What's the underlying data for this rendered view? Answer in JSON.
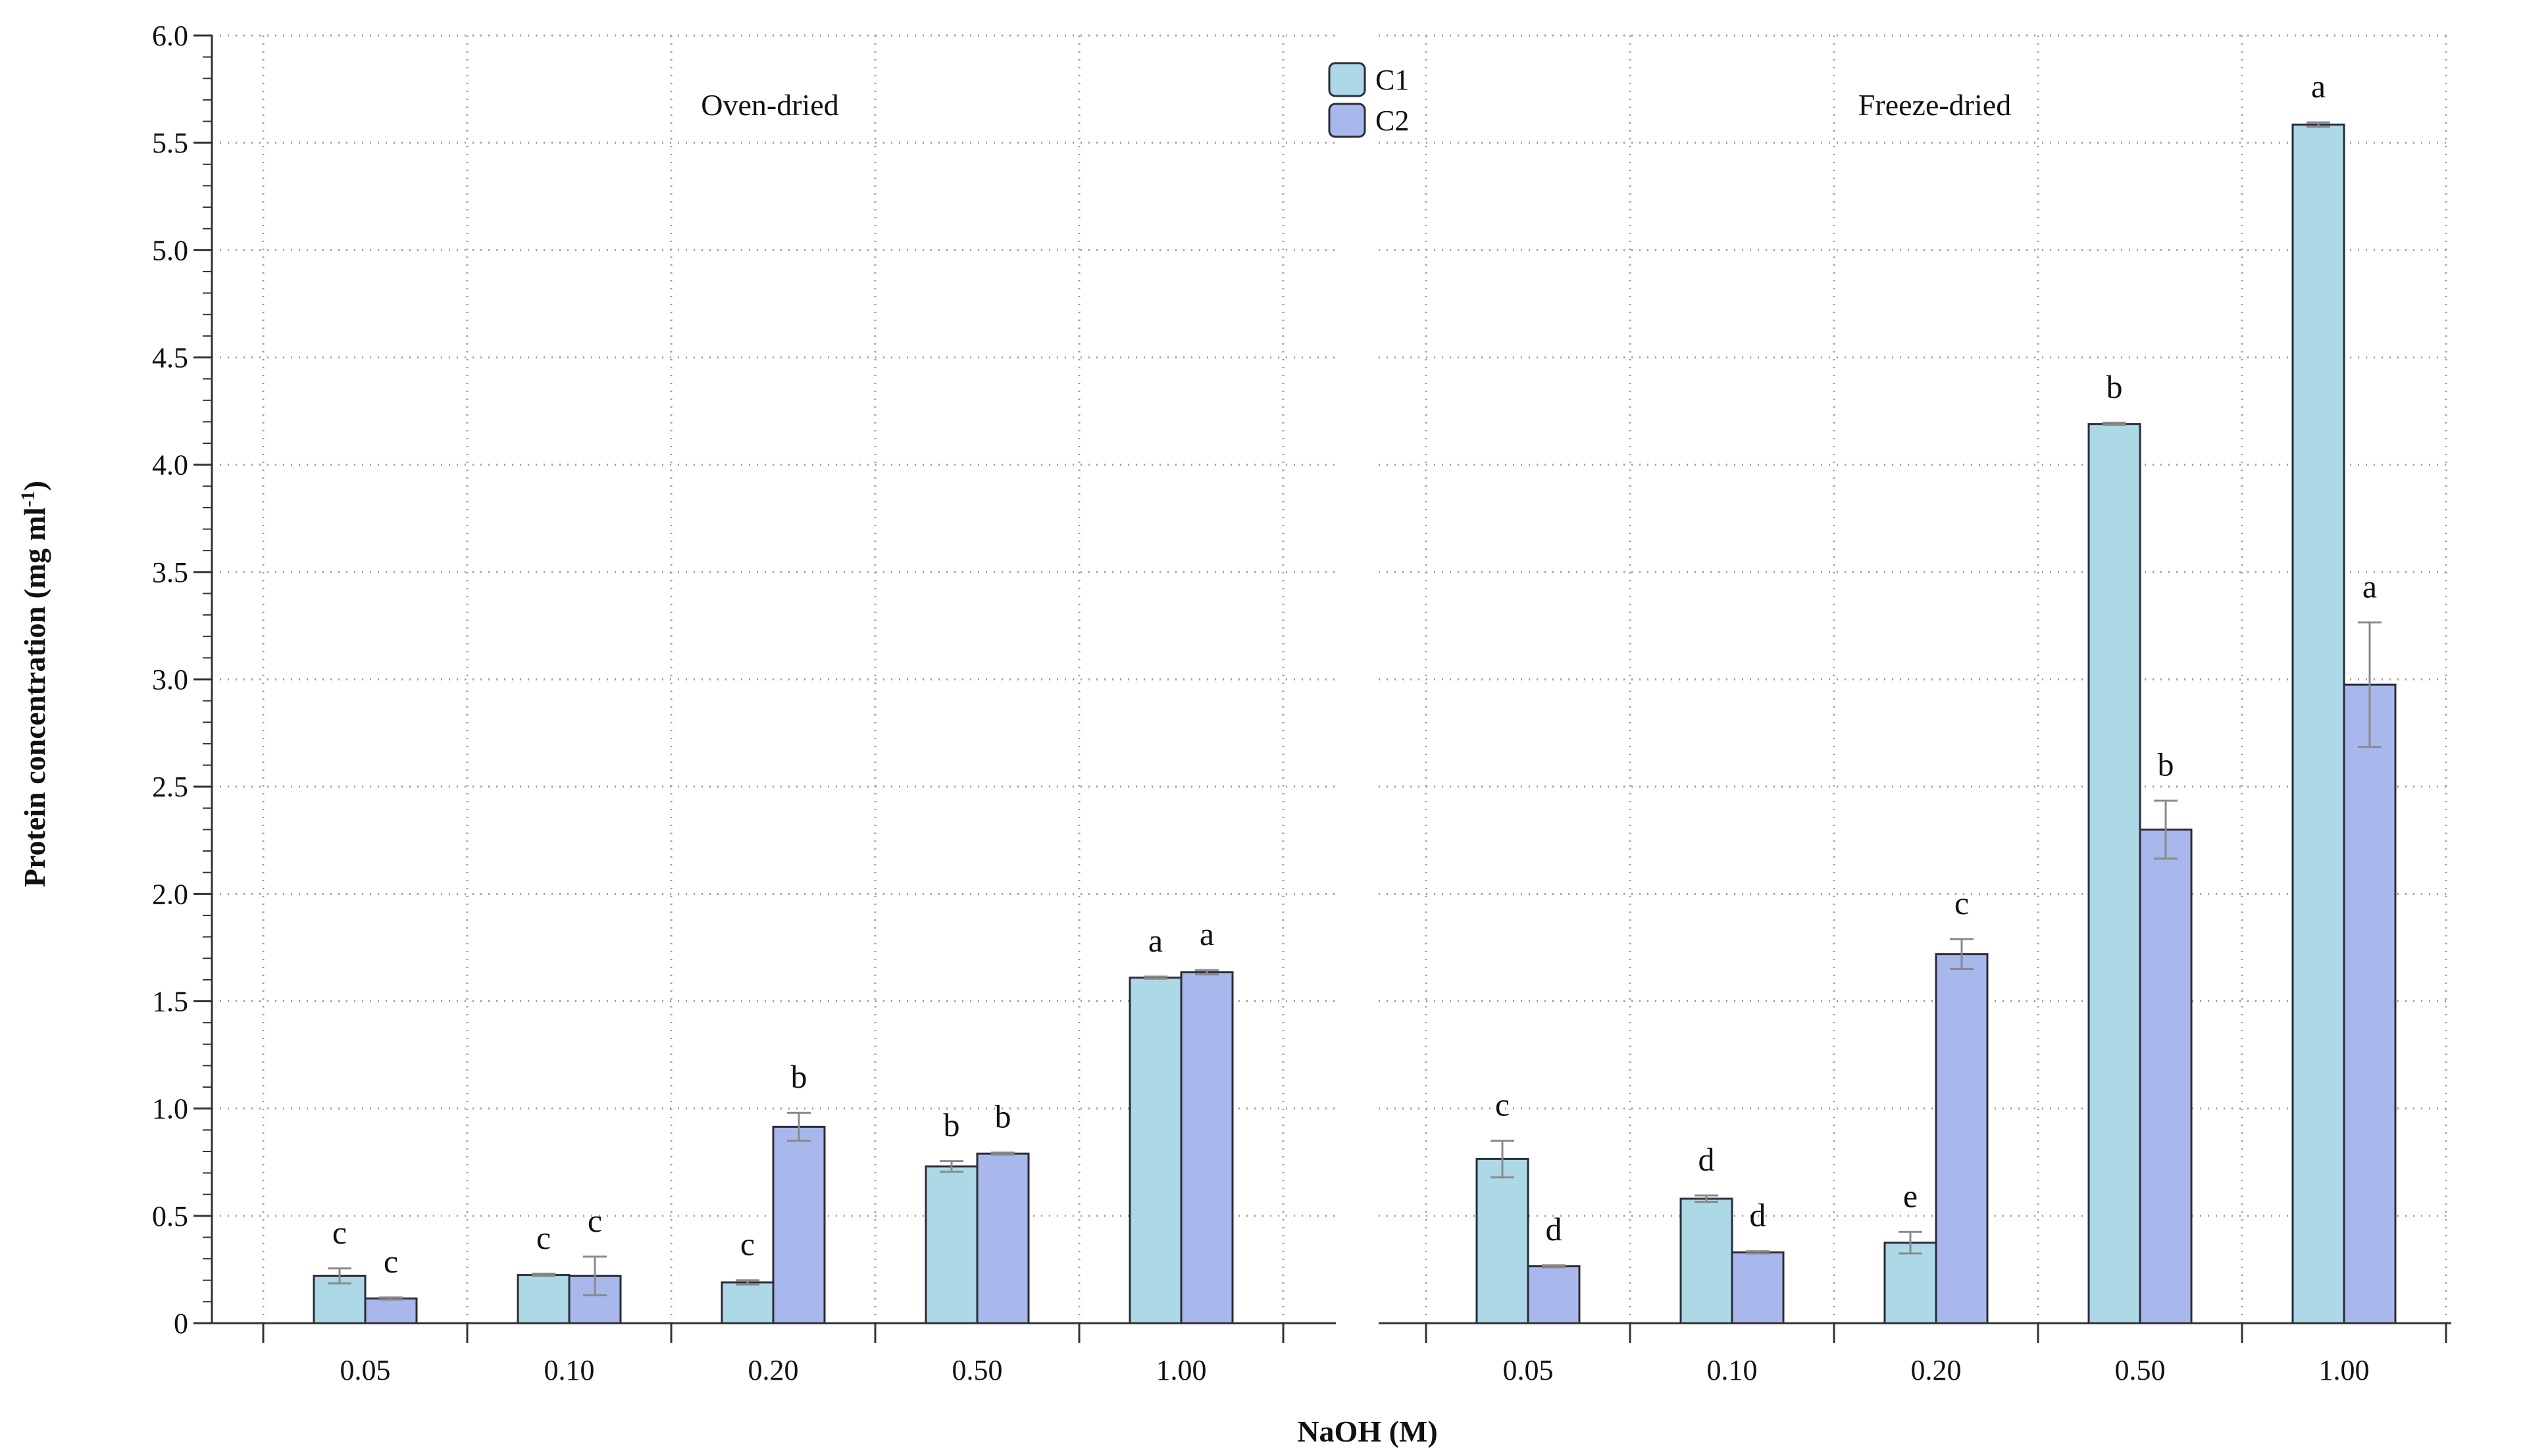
{
  "chart_data": {
    "type": "bar",
    "ylabel": "Protein concentration (mg ml",
    "ylabel_sup": "-1",
    "ylabel_close": ")",
    "xlabel": "NaOH (M)",
    "ylim": [
      0,
      6.0
    ],
    "yticks": [
      "0",
      "0.5",
      "1.0",
      "1.5",
      "2.0",
      "2.5",
      "3.0",
      "3.5",
      "4.0",
      "4.5",
      "5.0",
      "5.5",
      "6.0"
    ],
    "grid": true,
    "legend": {
      "placement": "top-center",
      "entries": [
        {
          "name": "C1",
          "color": "#add8e6"
        },
        {
          "name": "C2",
          "color": "#a8b8ec"
        }
      ]
    },
    "panels": [
      {
        "title": "Oven-dried",
        "categories": [
          "0.05",
          "0.10",
          "0.20",
          "0.50",
          "1.00"
        ],
        "series": [
          {
            "name": "C1",
            "values": [
              0.22,
              0.225,
              0.19,
              0.73,
              1.61
            ],
            "errors": [
              0.035,
              0.005,
              0.01,
              0.025,
              0.005
            ],
            "labels": [
              "c",
              "c",
              "c",
              "b",
              "a"
            ]
          },
          {
            "name": "C2",
            "values": [
              0.115,
              0.22,
              0.915,
              0.79,
              1.635
            ],
            "errors": [
              0.005,
              0.09,
              0.065,
              0.005,
              0.01
            ],
            "labels": [
              "c",
              "c",
              "b",
              "b",
              "a"
            ]
          }
        ]
      },
      {
        "title": "Freeze-dried",
        "categories": [
          "0.05",
          "0.10",
          "0.20",
          "0.50",
          "1.00"
        ],
        "series": [
          {
            "name": "C1",
            "values": [
              0.765,
              0.58,
              0.375,
              4.19,
              5.585
            ],
            "errors": [
              0.085,
              0.015,
              0.05,
              0.005,
              0.01
            ],
            "labels": [
              "c",
              "d",
              "e",
              "b",
              "a"
            ]
          },
          {
            "name": "C2",
            "values": [
              0.265,
              0.33,
              1.72,
              2.3,
              2.975
            ],
            "errors": [
              0.005,
              0.005,
              0.07,
              0.135,
              0.29
            ],
            "labels": [
              "d",
              "d",
              "c",
              "b",
              "a"
            ]
          }
        ]
      }
    ]
  }
}
